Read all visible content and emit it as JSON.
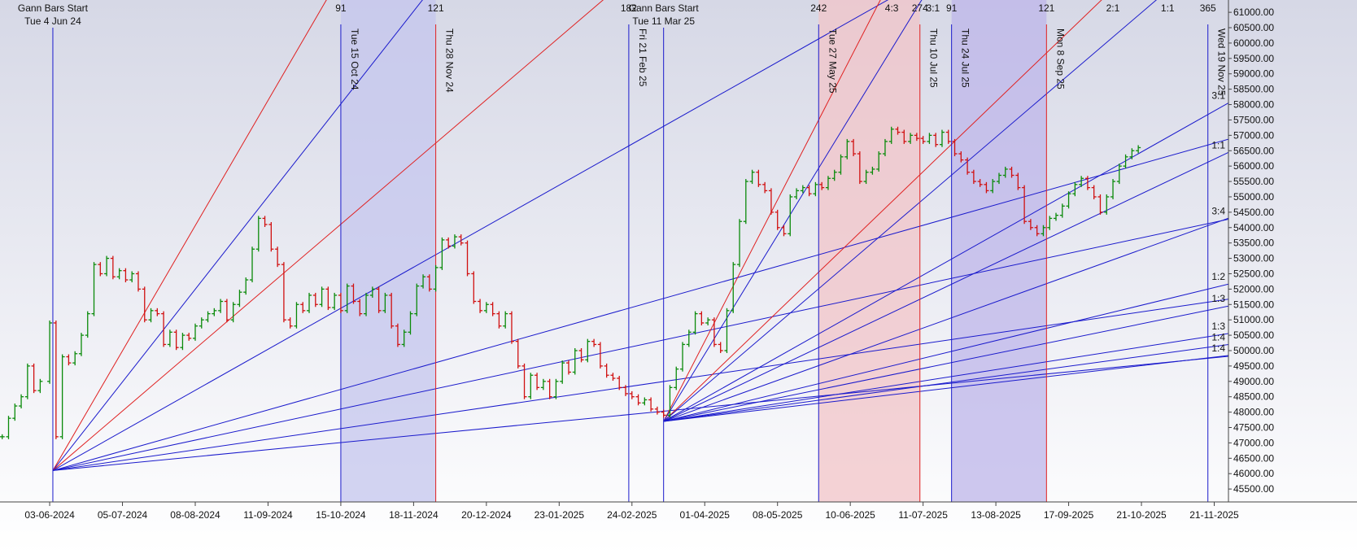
{
  "chart_data": {
    "type": "gann",
    "xlim": [
      -16.7,
      371.5
    ],
    "ylim": [
      45080,
      61400
    ],
    "xticks": [
      {
        "value": -1,
        "label": "03-06-2024"
      },
      {
        "value": 22,
        "label": "05-07-2024"
      },
      {
        "value": 45,
        "label": "08-08-2024"
      },
      {
        "value": 68,
        "label": "11-09-2024"
      },
      {
        "value": 91,
        "label": "15-10-2024"
      },
      {
        "value": 114,
        "label": "18-11-2024"
      },
      {
        "value": 137,
        "label": "20-12-2024"
      },
      {
        "value": 160,
        "label": "23-01-2025"
      },
      {
        "value": 183,
        "label": "24-02-2025"
      },
      {
        "value": 206,
        "label": "01-04-2025"
      },
      {
        "value": 229,
        "label": "08-05-2025"
      },
      {
        "value": 252,
        "label": "10-06-2025"
      },
      {
        "value": 275,
        "label": "11-07-2025"
      },
      {
        "value": 298,
        "label": "13-08-2025"
      },
      {
        "value": 321,
        "label": "17-09-2025"
      },
      {
        "value": 344,
        "label": "21-10-2025"
      },
      {
        "value": 367,
        "label": "21-11-2025"
      }
    ],
    "yticks": [
      {
        "value": 45500,
        "label": "45500.00"
      },
      {
        "value": 46000,
        "label": "46000.00"
      },
      {
        "value": 46500,
        "label": "46500.00"
      },
      {
        "value": 47000,
        "label": "47000.00"
      },
      {
        "value": 47500,
        "label": "47500.00"
      },
      {
        "value": 48000,
        "label": "48000.00"
      },
      {
        "value": 48500,
        "label": "48500.00"
      },
      {
        "value": 49000,
        "label": "49000.00"
      },
      {
        "value": 49500,
        "label": "49500.00"
      },
      {
        "value": 50000,
        "label": "50000.00"
      },
      {
        "value": 50500,
        "label": "50500.00"
      },
      {
        "value": 51000,
        "label": "51000.00"
      },
      {
        "value": 51500,
        "label": "51500.00"
      },
      {
        "value": 52000,
        "label": "52000.00"
      },
      {
        "value": 52500,
        "label": "52500.00"
      },
      {
        "value": 53000,
        "label": "53000.00"
      },
      {
        "value": 53500,
        "label": "53500.00"
      },
      {
        "value": 54000,
        "label": "54000.00"
      },
      {
        "value": 54500,
        "label": "54500.00"
      },
      {
        "value": 55000,
        "label": "55000.00"
      },
      {
        "value": 55500,
        "label": "55500.00"
      },
      {
        "value": 56000,
        "label": "56000.00"
      },
      {
        "value": 56500,
        "label": "56500.00"
      },
      {
        "value": 57000,
        "label": "57000.00"
      },
      {
        "value": 57500,
        "label": "57500.00"
      },
      {
        "value": 58000,
        "label": "58000.00"
      },
      {
        "value": 58500,
        "label": "58500.00"
      },
      {
        "value": 59000,
        "label": "59000.00"
      },
      {
        "value": 59500,
        "label": "59500.00"
      },
      {
        "value": 60000,
        "label": "60000.00"
      },
      {
        "value": 60500,
        "label": "60500.00"
      },
      {
        "value": 61000,
        "label": "61000.00"
      }
    ],
    "up_color": "#0a8a0a",
    "down_color": "#d01010",
    "x": [
      -16,
      -14,
      -12,
      -10,
      -8,
      -6,
      -4,
      -1,
      1,
      3,
      5,
      7,
      9,
      11,
      13,
      15,
      17,
      19,
      21,
      23,
      25,
      27,
      29,
      31,
      33,
      35,
      37,
      39,
      41,
      43,
      45,
      47,
      49,
      51,
      53,
      55,
      57,
      59,
      61,
      63,
      65,
      67,
      69,
      71,
      73,
      75,
      77,
      79,
      81,
      83,
      85,
      87,
      89,
      91,
      93,
      95,
      97,
      99,
      101,
      103,
      105,
      107,
      109,
      111,
      113,
      115,
      117,
      119,
      121,
      123,
      125,
      127,
      129,
      131,
      133,
      135,
      137,
      139,
      141,
      143,
      145,
      147,
      149,
      151,
      153,
      155,
      157,
      159,
      161,
      163,
      165,
      167,
      169,
      171,
      173,
      175,
      177,
      179,
      181,
      183,
      185,
      187,
      189,
      191,
      193,
      195,
      197,
      199,
      201,
      203,
      205,
      207,
      209,
      211,
      213,
      215,
      217,
      219,
      221,
      223,
      225,
      227,
      229,
      231,
      233,
      235,
      237,
      239,
      241,
      243,
      245,
      247,
      249,
      251,
      253,
      255,
      257,
      259,
      261,
      263,
      265,
      267,
      269,
      271,
      273,
      275,
      277,
      279,
      281,
      283,
      285,
      287,
      289,
      291,
      293,
      295,
      297,
      299,
      301,
      303,
      305,
      307,
      309,
      311,
      313,
      315,
      317,
      319,
      321,
      323,
      325,
      327,
      329,
      331,
      333,
      335,
      337,
      339,
      341,
      343
    ],
    "values": [
      47200,
      47800,
      48200,
      48500,
      49500,
      48700,
      49000,
      50900,
      47200,
      49800,
      49600,
      49900,
      50500,
      51200,
      52800,
      52500,
      53000,
      52400,
      52600,
      52300,
      52500,
      52000,
      51000,
      51300,
      51200,
      50200,
      50600,
      50100,
      50500,
      50400,
      50800,
      51000,
      51200,
      51300,
      51600,
      51000,
      51500,
      51900,
      52300,
      53300,
      54300,
      54100,
      53300,
      52800,
      51000,
      50800,
      51500,
      51300,
      51800,
      51500,
      52000,
      51400,
      51800,
      51300,
      52100,
      51600,
      51200,
      51800,
      52000,
      51300,
      51800,
      50800,
      50200,
      50600,
      51200,
      52100,
      52400,
      52000,
      52700,
      53600,
      53400,
      53700,
      53500,
      52500,
      51600,
      51300,
      51500,
      51200,
      50800,
      51200,
      50300,
      49500,
      48500,
      49200,
      48800,
      49000,
      48500,
      49000,
      49600,
      49300,
      50000,
      49700,
      50300,
      50200,
      49500,
      49200,
      49100,
      48800,
      48600,
      48500,
      48300,
      48400,
      48100,
      48000,
      47900,
      48800,
      49400,
      50200,
      50600,
      51200,
      50900,
      51000,
      50200,
      50000,
      51300,
      52800,
      54200,
      55500,
      55800,
      55400,
      55200,
      54500,
      54000,
      53800,
      55000,
      55200,
      55300,
      55100,
      55400,
      55300,
      55600,
      55800,
      56300,
      56800,
      56400,
      55500,
      55800,
      55900,
      56400,
      56800,
      57200,
      57100,
      56800,
      57000,
      56900,
      56800,
      57000,
      56700,
      57100,
      56800,
      56400,
      56200,
      55800,
      55500,
      55400,
      55200,
      55500,
      55700,
      55900,
      55700,
      55300,
      54200,
      54000,
      53800,
      54000,
      54300,
      54400,
      54700,
      55100,
      55400,
      55600,
      55300,
      55000,
      54500,
      55000,
      55500,
      56000,
      56300,
      56500,
      56600
    ],
    "bands": [
      {
        "from": 91,
        "to": 121,
        "color": "#c4c6ee"
      },
      {
        "from": 242,
        "to": 274,
        "color": "#f2c4c8"
      },
      {
        "from": 284,
        "to": 314,
        "color": "#bdb6ea"
      }
    ],
    "starts": [
      {
        "x": 0,
        "title": "Gann Bars Start",
        "date": "Tue 4 Jun 24"
      },
      {
        "x": 193,
        "title": "Gann Bars Start",
        "date": "Tue 11 Mar 25"
      }
    ],
    "verticals": [
      {
        "x": 91,
        "label": "Tue 15 Oct 24",
        "count": 91,
        "color": "#1a1acc"
      },
      {
        "x": 121,
        "label": "Thu 28 Nov 24",
        "count": 121,
        "color": "#e02020"
      },
      {
        "x": 182,
        "label": "Fri 21 Feb 25",
        "count": 182,
        "color": "#1a1acc"
      },
      {
        "x": 242,
        "label": "Tue 27 May 25",
        "count": 242,
        "color": "#1a1acc"
      },
      {
        "x": 274,
        "label": "Thu 10 Jul 25",
        "count": 274,
        "color": "#e02020"
      },
      {
        "x": 284,
        "label": "Thu 24 Jul 25",
        "count": 91,
        "color": "#1a1acc"
      },
      {
        "x": 314,
        "label": "Mon 8 Sep 25",
        "count": 121,
        "color": "#e02020"
      },
      {
        "x": 365,
        "label": "Wed 19 Nov 25",
        "count": 365,
        "color": "#1a1acc"
      }
    ],
    "fans": [
      {
        "x": 0,
        "price": 46100,
        "lines": [
          {
            "slope": 177,
            "color": "#e02020"
          },
          {
            "slope": 131,
            "color": "#1a1acc"
          },
          {
            "slope": 88,
            "color": "#e02020"
          },
          {
            "slope": 58,
            "color": "#1a1acc"
          },
          {
            "slope": 29,
            "color": "#1a1acc"
          },
          {
            "slope": 22,
            "color": "#1a1acc"
          },
          {
            "slope": 15,
            "color": "#1a1acc"
          },
          {
            "slope": 10,
            "color": "#1a1acc"
          }
        ]
      },
      {
        "x": 193,
        "price": 47700,
        "lines": [
          {
            "slope": 200,
            "color": "#e02020",
            "label": "4:3"
          },
          {
            "slope": 168,
            "color": "#1a1acc",
            "label": "3:1"
          },
          {
            "slope": 99,
            "color": "#e02020",
            "label": "2:1"
          },
          {
            "slope": 88,
            "color": "#1a1acc",
            "label": "1:1"
          },
          {
            "slope": 58,
            "color": "#1a1acc",
            "label": "3:1"
          },
          {
            "slope": 49,
            "color": "#1a1acc",
            "label": "1:1"
          },
          {
            "slope": 37,
            "color": "#1a1acc",
            "label": "3:4"
          },
          {
            "slope": 25,
            "color": "#1a1acc",
            "label": "1:2"
          },
          {
            "slope": 21,
            "color": "#1a1acc",
            "label": "1:3"
          },
          {
            "slope": 16,
            "color": "#1a1acc",
            "label": "1:3"
          },
          {
            "slope": 14,
            "color": "#1a1acc",
            "label": "1:4"
          },
          {
            "slope": 12,
            "color": "#1a1acc",
            "label": "1:4"
          }
        ]
      }
    ]
  }
}
